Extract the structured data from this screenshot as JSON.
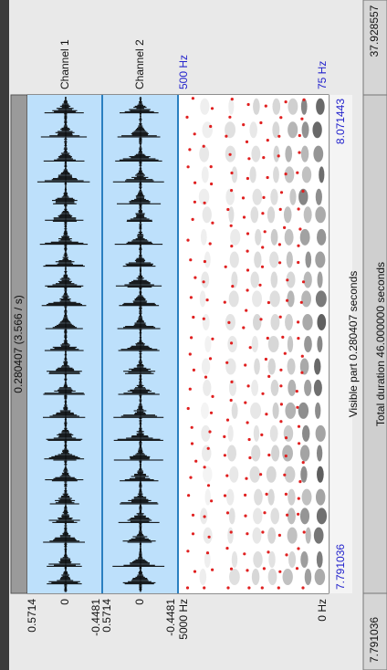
{
  "header": {
    "selection": "0.280407 (3.566 / s)"
  },
  "channels": [
    {
      "label": "Channel 1",
      "max": "0.5714",
      "zero": "0",
      "min": "-0.4481"
    },
    {
      "label": "Channel 2",
      "max": "0.5714",
      "zero": "0",
      "min": "-0.4481"
    }
  ],
  "spectrogram": {
    "freq_max": "5000 Hz",
    "freq_min": "0 Hz",
    "pitch_max": "500 Hz",
    "pitch_min": "75 Hz"
  },
  "time": {
    "start": "7.791036",
    "end": "8.071443",
    "visible": "Visible part 0.280407 seconds"
  },
  "footer": {
    "left": "7.791036",
    "total": "Total duration 46.000000 seconds",
    "right": "37.928557"
  }
}
